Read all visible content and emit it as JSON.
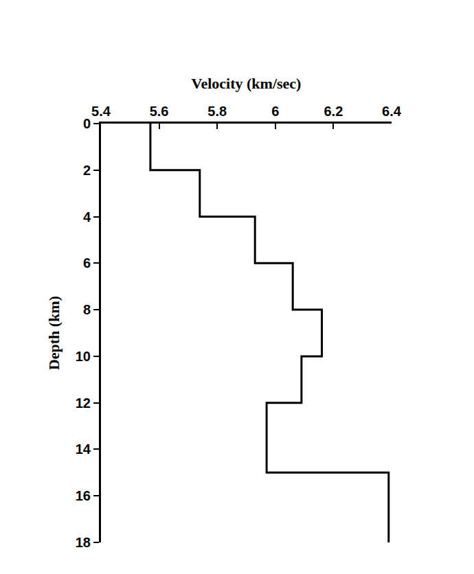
{
  "chart_data": {
    "type": "line",
    "line_style": "step",
    "color": "#000000",
    "xlabel": "Velocity (km/sec)",
    "ylabel": "Depth (km)",
    "x": [
      5.57,
      5.74,
      5.93,
      6.06,
      6.16,
      6.09,
      5.97,
      6.39,
      6.39
    ],
    "values": [
      0,
      2,
      4,
      6,
      8,
      10,
      12,
      15,
      18
    ],
    "xlim": [
      5.4,
      6.4
    ],
    "xticks": [
      5.4,
      5.6,
      5.8,
      6,
      6.2,
      6.4
    ],
    "ylim": [
      0,
      18
    ],
    "yticks": [
      0,
      2,
      4,
      6,
      8,
      10,
      12,
      14,
      16,
      18
    ],
    "grid": false
  }
}
